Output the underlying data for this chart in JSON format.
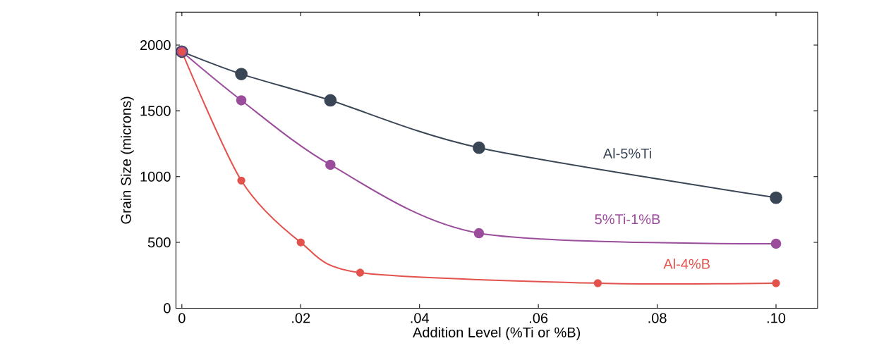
{
  "chart_data": {
    "type": "line",
    "xlabel": "Addition Level (%Ti or %B)",
    "ylabel": "Grain Size (microns)",
    "xlim": [
      -0.001,
      0.107
    ],
    "ylim": [
      0,
      2250
    ],
    "xticks": [
      0,
      {
        "value": 0.02,
        "label": ".02"
      },
      {
        "value": 0.04,
        "label": ".04"
      },
      {
        "value": 0.06,
        "label": ".06"
      },
      {
        "value": 0.08,
        "label": ".08"
      },
      {
        "value": 0.1,
        "label": ".10"
      }
    ],
    "yticks": [
      0,
      500,
      1000,
      1500,
      2000
    ],
    "marker": "circle",
    "line_style": "solid",
    "grid": false,
    "legend": false,
    "series": [
      {
        "name": "Al-5%Ti",
        "color": "#3a4656",
        "x": [
          0,
          0.01,
          0.025,
          0.05,
          0.1
        ],
        "values": [
          1950,
          1780,
          1580,
          1220,
          840
        ]
      },
      {
        "name": "5%Ti-1%B",
        "color": "#9b4c9b",
        "x": [
          0,
          0.01,
          0.025,
          0.05,
          0.1
        ],
        "values": [
          1950,
          1580,
          1090,
          570,
          490
        ]
      },
      {
        "name": "Al-4%B",
        "color": "#e3524c",
        "x": [
          0,
          0.01,
          0.02,
          0.03,
          0.07,
          0.1
        ],
        "values": [
          1950,
          970,
          500,
          270,
          190,
          190
        ]
      }
    ]
  }
}
